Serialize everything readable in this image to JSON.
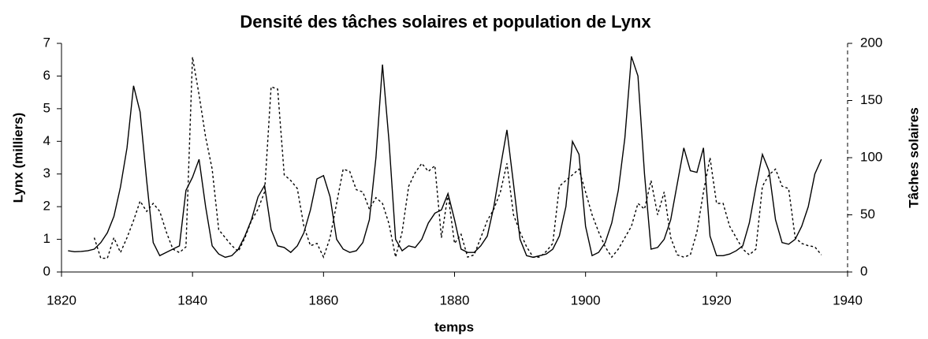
{
  "chart_data": {
    "type": "line",
    "title": "Densité des tâches solaires et population de Lynx",
    "xlabel": "temps",
    "ylabel": "Lynx (milliers)",
    "y2label": "Tâches solaires",
    "x": [
      1821,
      1822,
      1823,
      1824,
      1825,
      1826,
      1827,
      1828,
      1829,
      1830,
      1831,
      1832,
      1833,
      1834,
      1835,
      1836,
      1837,
      1838,
      1839,
      1840,
      1841,
      1842,
      1843,
      1844,
      1845,
      1846,
      1847,
      1848,
      1849,
      1850,
      1851,
      1852,
      1853,
      1854,
      1855,
      1856,
      1857,
      1858,
      1859,
      1860,
      1861,
      1862,
      1863,
      1864,
      1865,
      1866,
      1867,
      1868,
      1869,
      1870,
      1871,
      1872,
      1873,
      1874,
      1875,
      1876,
      1877,
      1878,
      1879,
      1880,
      1881,
      1882,
      1883,
      1884,
      1885,
      1886,
      1887,
      1888,
      1889,
      1890,
      1891,
      1892,
      1893,
      1894,
      1895,
      1896,
      1897,
      1898,
      1899,
      1900,
      1901,
      1902,
      1903,
      1904,
      1905,
      1906,
      1907,
      1908,
      1909,
      1910,
      1911,
      1912,
      1913,
      1914,
      1915,
      1916,
      1917,
      1918,
      1919,
      1920,
      1921,
      1922,
      1923,
      1924,
      1925,
      1926,
      1927,
      1928,
      1929,
      1930,
      1931,
      1932,
      1933,
      1934,
      1935,
      1936
    ],
    "series": [
      {
        "name": "Lynx",
        "color": "#000000",
        "dash": "none",
        "values": [
          0.65,
          0.62,
          0.63,
          0.65,
          0.7,
          0.9,
          1.2,
          1.7,
          2.6,
          3.8,
          5.7,
          4.9,
          2.8,
          0.9,
          0.5,
          0.6,
          0.7,
          0.8,
          2.5,
          2.9,
          3.45,
          2.0,
          0.8,
          0.55,
          0.45,
          0.5,
          0.7,
          1.1,
          1.6,
          2.3,
          2.65,
          1.3,
          0.8,
          0.75,
          0.6,
          0.8,
          1.2,
          1.9,
          2.85,
          2.95,
          2.3,
          1.0,
          0.7,
          0.6,
          0.65,
          0.9,
          1.6,
          3.5,
          6.35,
          4.0,
          1.0,
          0.65,
          0.8,
          0.75,
          1.0,
          1.5,
          1.8,
          1.9,
          2.4,
          1.6,
          0.7,
          0.6,
          0.6,
          0.8,
          1.1,
          2.0,
          3.2,
          4.35,
          2.7,
          1.0,
          0.5,
          0.45,
          0.5,
          0.55,
          0.7,
          1.1,
          2.0,
          4.0,
          3.6,
          1.4,
          0.5,
          0.6,
          0.9,
          1.5,
          2.5,
          4.1,
          6.6,
          6.0,
          3.0,
          0.7,
          0.75,
          1.0,
          1.6,
          2.7,
          3.8,
          3.1,
          3.05,
          3.8,
          1.1,
          0.5,
          0.5,
          0.55,
          0.65,
          0.8,
          1.5,
          2.6,
          3.6,
          3.1,
          1.6,
          0.9,
          0.85,
          1.0,
          1.4,
          2.0,
          3.0,
          3.45
        ]
      },
      {
        "name": "Tâches solaires",
        "color": "#000000",
        "dash": "3,3",
        "axis": "y2",
        "values": [
          null,
          null,
          null,
          null,
          30,
          12,
          12,
          30,
          17,
          30,
          45,
          62,
          53,
          60,
          53,
          35,
          20,
          17,
          22,
          188,
          155,
          118,
          90,
          37,
          30,
          23,
          18,
          30,
          45,
          55,
          70,
          162,
          160,
          85,
          80,
          73,
          40,
          23,
          25,
          13,
          30,
          60,
          90,
          88,
          72,
          70,
          55,
          65,
          60,
          42,
          13,
          35,
          75,
          87,
          95,
          88,
          93,
          30,
          68,
          25,
          33,
          13,
          15,
          30,
          45,
          55,
          70,
          95,
          50,
          35,
          22,
          13,
          13,
          18,
          25,
          75,
          80,
          85,
          90,
          70,
          50,
          35,
          22,
          13,
          20,
          30,
          40,
          60,
          55,
          80,
          50,
          70,
          30,
          15,
          13,
          15,
          35,
          70,
          100,
          60,
          60,
          40,
          30,
          20,
          15,
          20,
          75,
          85,
          90,
          75,
          73,
          30,
          25,
          23,
          22,
          15
        ]
      }
    ],
    "xlim": [
      1820,
      1940
    ],
    "xticks": [
      1820,
      1840,
      1860,
      1880,
      1900,
      1920,
      1940
    ],
    "ylim": [
      0,
      7
    ],
    "yticks": [
      0,
      1,
      2,
      3,
      4,
      5,
      6,
      7
    ],
    "y2lim": [
      0,
      200
    ],
    "y2ticks": [
      0,
      50,
      100,
      150,
      200
    ]
  }
}
